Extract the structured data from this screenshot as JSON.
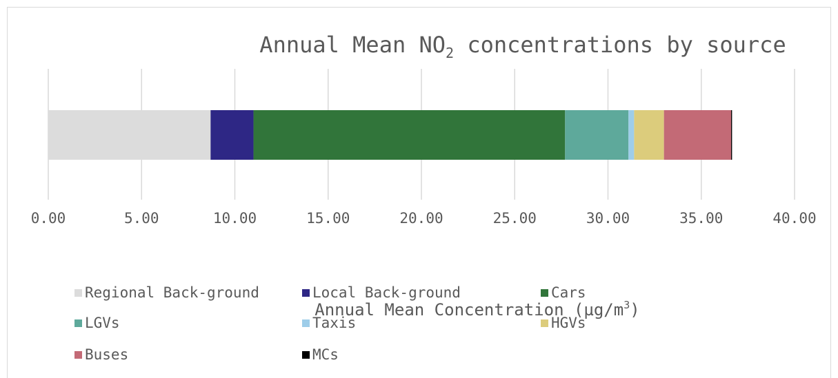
{
  "chart_data": {
    "type": "bar",
    "orientation": "horizontal",
    "stacked": true,
    "title": {
      "prefix": "Annual Mean NO",
      "subscript": "2",
      "suffix": " concentrations by source"
    },
    "xlabel": {
      "text": "Annual Mean Concentration (µg/m",
      "superscript": "3",
      "suffix": ")"
    },
    "xlim": [
      0,
      40
    ],
    "xticks": [
      {
        "value": 0,
        "label": "0.00"
      },
      {
        "value": 5,
        "label": "5.00"
      },
      {
        "value": 10,
        "label": "10.00"
      },
      {
        "value": 15,
        "label": "15.00"
      },
      {
        "value": 20,
        "label": "20.00"
      },
      {
        "value": 25,
        "label": "25.00"
      },
      {
        "value": 30,
        "label": "30.00"
      },
      {
        "value": 35,
        "label": "35.00"
      },
      {
        "value": 40,
        "label": "40.00"
      }
    ],
    "grid": true,
    "legend_position": "bottom",
    "series": [
      {
        "name": "Regional Back-ground",
        "value": 8.7,
        "color": "#dcdcdc"
      },
      {
        "name": "Local Back-ground",
        "value": 2.3,
        "color": "#2e2785"
      },
      {
        "name": "Cars",
        "value": 16.7,
        "color": "#31753a"
      },
      {
        "name": "LGVs",
        "value": 3.4,
        "color": "#5ea99b"
      },
      {
        "name": "Taxis",
        "value": 0.3,
        "color": "#9ecde9"
      },
      {
        "name": "HGVs",
        "value": 1.6,
        "color": "#dccc7c"
      },
      {
        "name": "Buses",
        "value": 3.6,
        "color": "#c36a76"
      },
      {
        "name": "MCs",
        "value": 0.05,
        "color": "#000000"
      }
    ]
  }
}
